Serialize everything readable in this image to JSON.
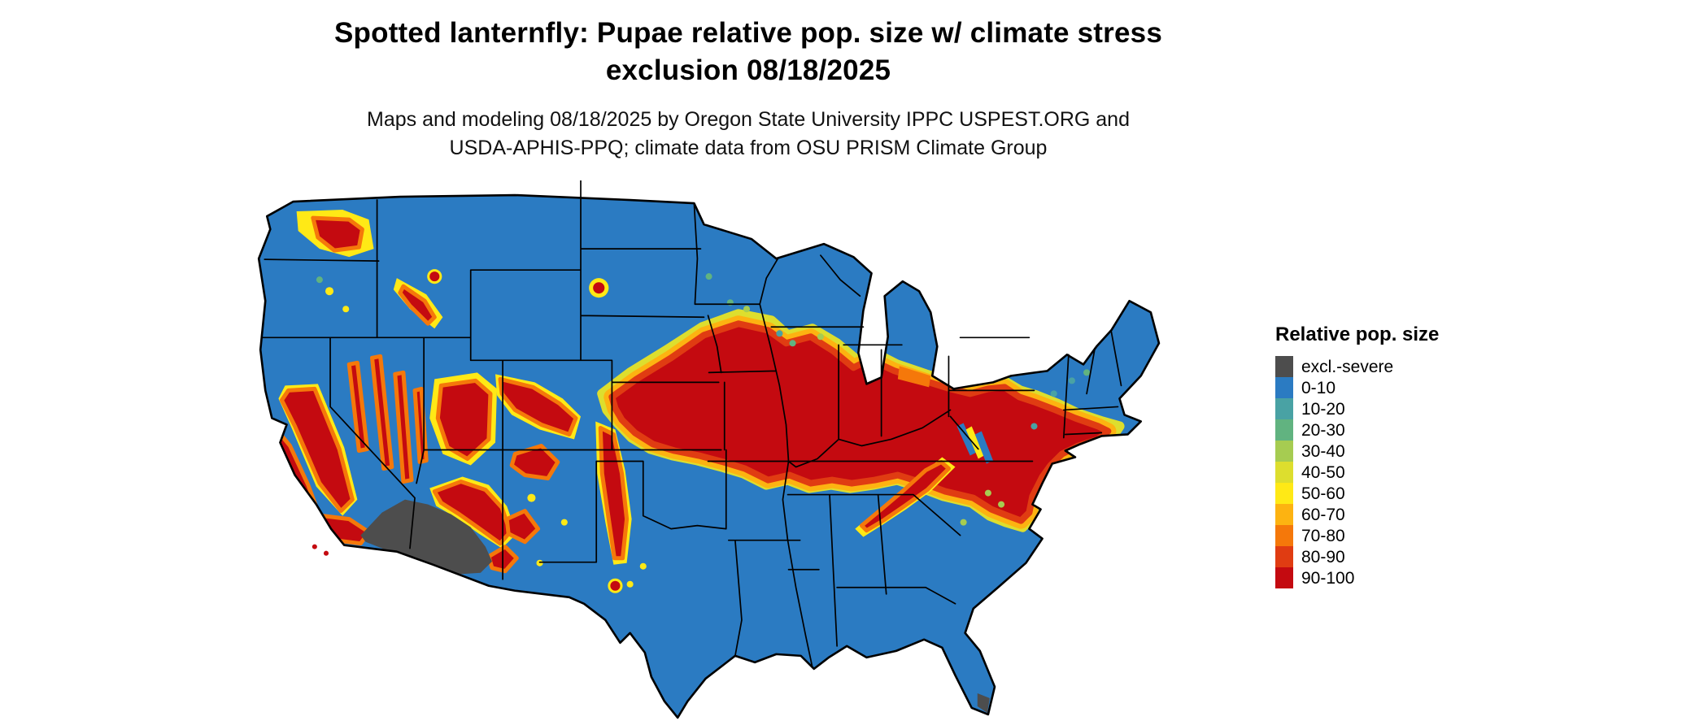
{
  "title": {
    "line1": "Spotted lanternfly: Pupae relative pop. size w/ climate stress",
    "line2": "exclusion 08/18/2025"
  },
  "subtitle": {
    "line1": "Maps and modeling 08/18/2025 by Oregon State University IPPC USPEST.ORG and",
    "line2": "USDA-APHIS-PPQ; climate data from OSU PRISM Climate Group"
  },
  "legend": {
    "title": "Relative pop. size",
    "items": [
      {
        "label": "excl.-severe",
        "color": "#4d4d4d"
      },
      {
        "label": "0-10",
        "color": "#2b7bc2"
      },
      {
        "label": "10-20",
        "color": "#49a2a4"
      },
      {
        "label": "20-30",
        "color": "#61b380"
      },
      {
        "label": "30-40",
        "color": "#a6cc51"
      },
      {
        "label": "40-50",
        "color": "#ddde2e"
      },
      {
        "label": "50-60",
        "color": "#ffe916"
      },
      {
        "label": "60-70",
        "color": "#fdb311"
      },
      {
        "label": "70-80",
        "color": "#f5780a"
      },
      {
        "label": "80-90",
        "color": "#e03c12"
      },
      {
        "label": "90-100",
        "color": "#c40a10"
      }
    ]
  },
  "map": {
    "region": "Contiguous United States",
    "type": "raster risk map with state borders",
    "base_low_risk_color": "#2b7bc2",
    "high_risk_band": "Central Plains through Midwest, Ohio Valley, Mid-Atlantic and southern New England coast; Appalachian ridge; western mountain ranges and California valleys",
    "excluded_severe_region": "Sonoran / Mojave desert (southwestern Arizona and southeastern California)"
  }
}
